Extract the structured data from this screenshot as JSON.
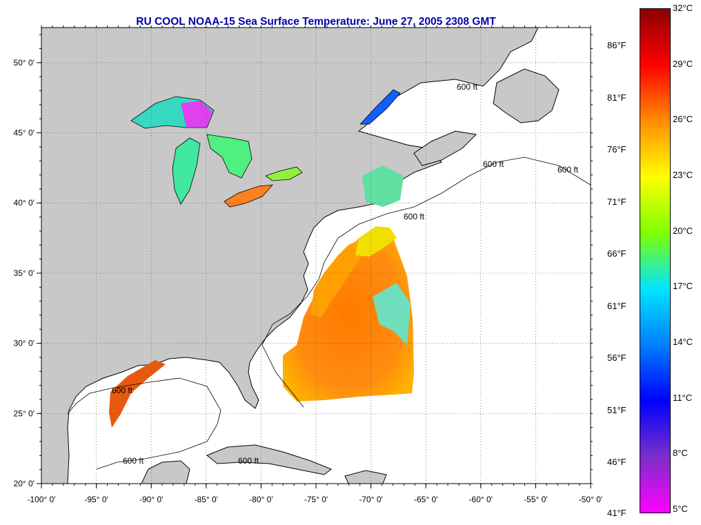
{
  "title": "RU COOL  NOAA-15  Sea Surface Temperature:  June 27, 2005 2308 GMT",
  "map": {
    "lon_range": [
      -100,
      -50
    ],
    "lat_range": [
      20,
      52.5
    ],
    "lon_ticks": [
      "-100° 0'",
      "-95° 0'",
      "-90° 0'",
      "-85° 0'",
      "-80° 0'",
      "-75° 0'",
      "-70° 0'",
      "-65° 0'",
      "-60° 0'",
      "-55° 0'",
      "-50° 0'"
    ],
    "lat_ticks": [
      "20° 0'",
      "25° 0'",
      "30° 0'",
      "35° 0'",
      "40° 0'",
      "45° 0'",
      "50° 0'"
    ],
    "grid": true,
    "land_color": "#c8c8c8",
    "ocean_color": "#ffffff",
    "depth_labels": [
      "600 ft",
      "600 ft",
      "600 ft",
      "600 ft",
      "600 ft",
      "600 ft",
      "600 ft"
    ]
  },
  "colorbar": {
    "celsius_labels": [
      "32°C",
      "29°C",
      "26°C",
      "23°C",
      "20°C",
      "17°C",
      "14°C",
      "11°C",
      "8°C",
      "5°C"
    ],
    "fahrenheit_labels": [
      "86°F",
      "81°F",
      "76°F",
      "71°F",
      "66°F",
      "61°F",
      "56°F",
      "51°F",
      "46°F",
      "41°F"
    ],
    "colors": [
      "#8b0000",
      "#ff0000",
      "#ff8c00",
      "#ffff00",
      "#7fff00",
      "#00e5ff",
      "#007fff",
      "#0000ff",
      "#7b2fc8",
      "#ff00ff"
    ]
  }
}
